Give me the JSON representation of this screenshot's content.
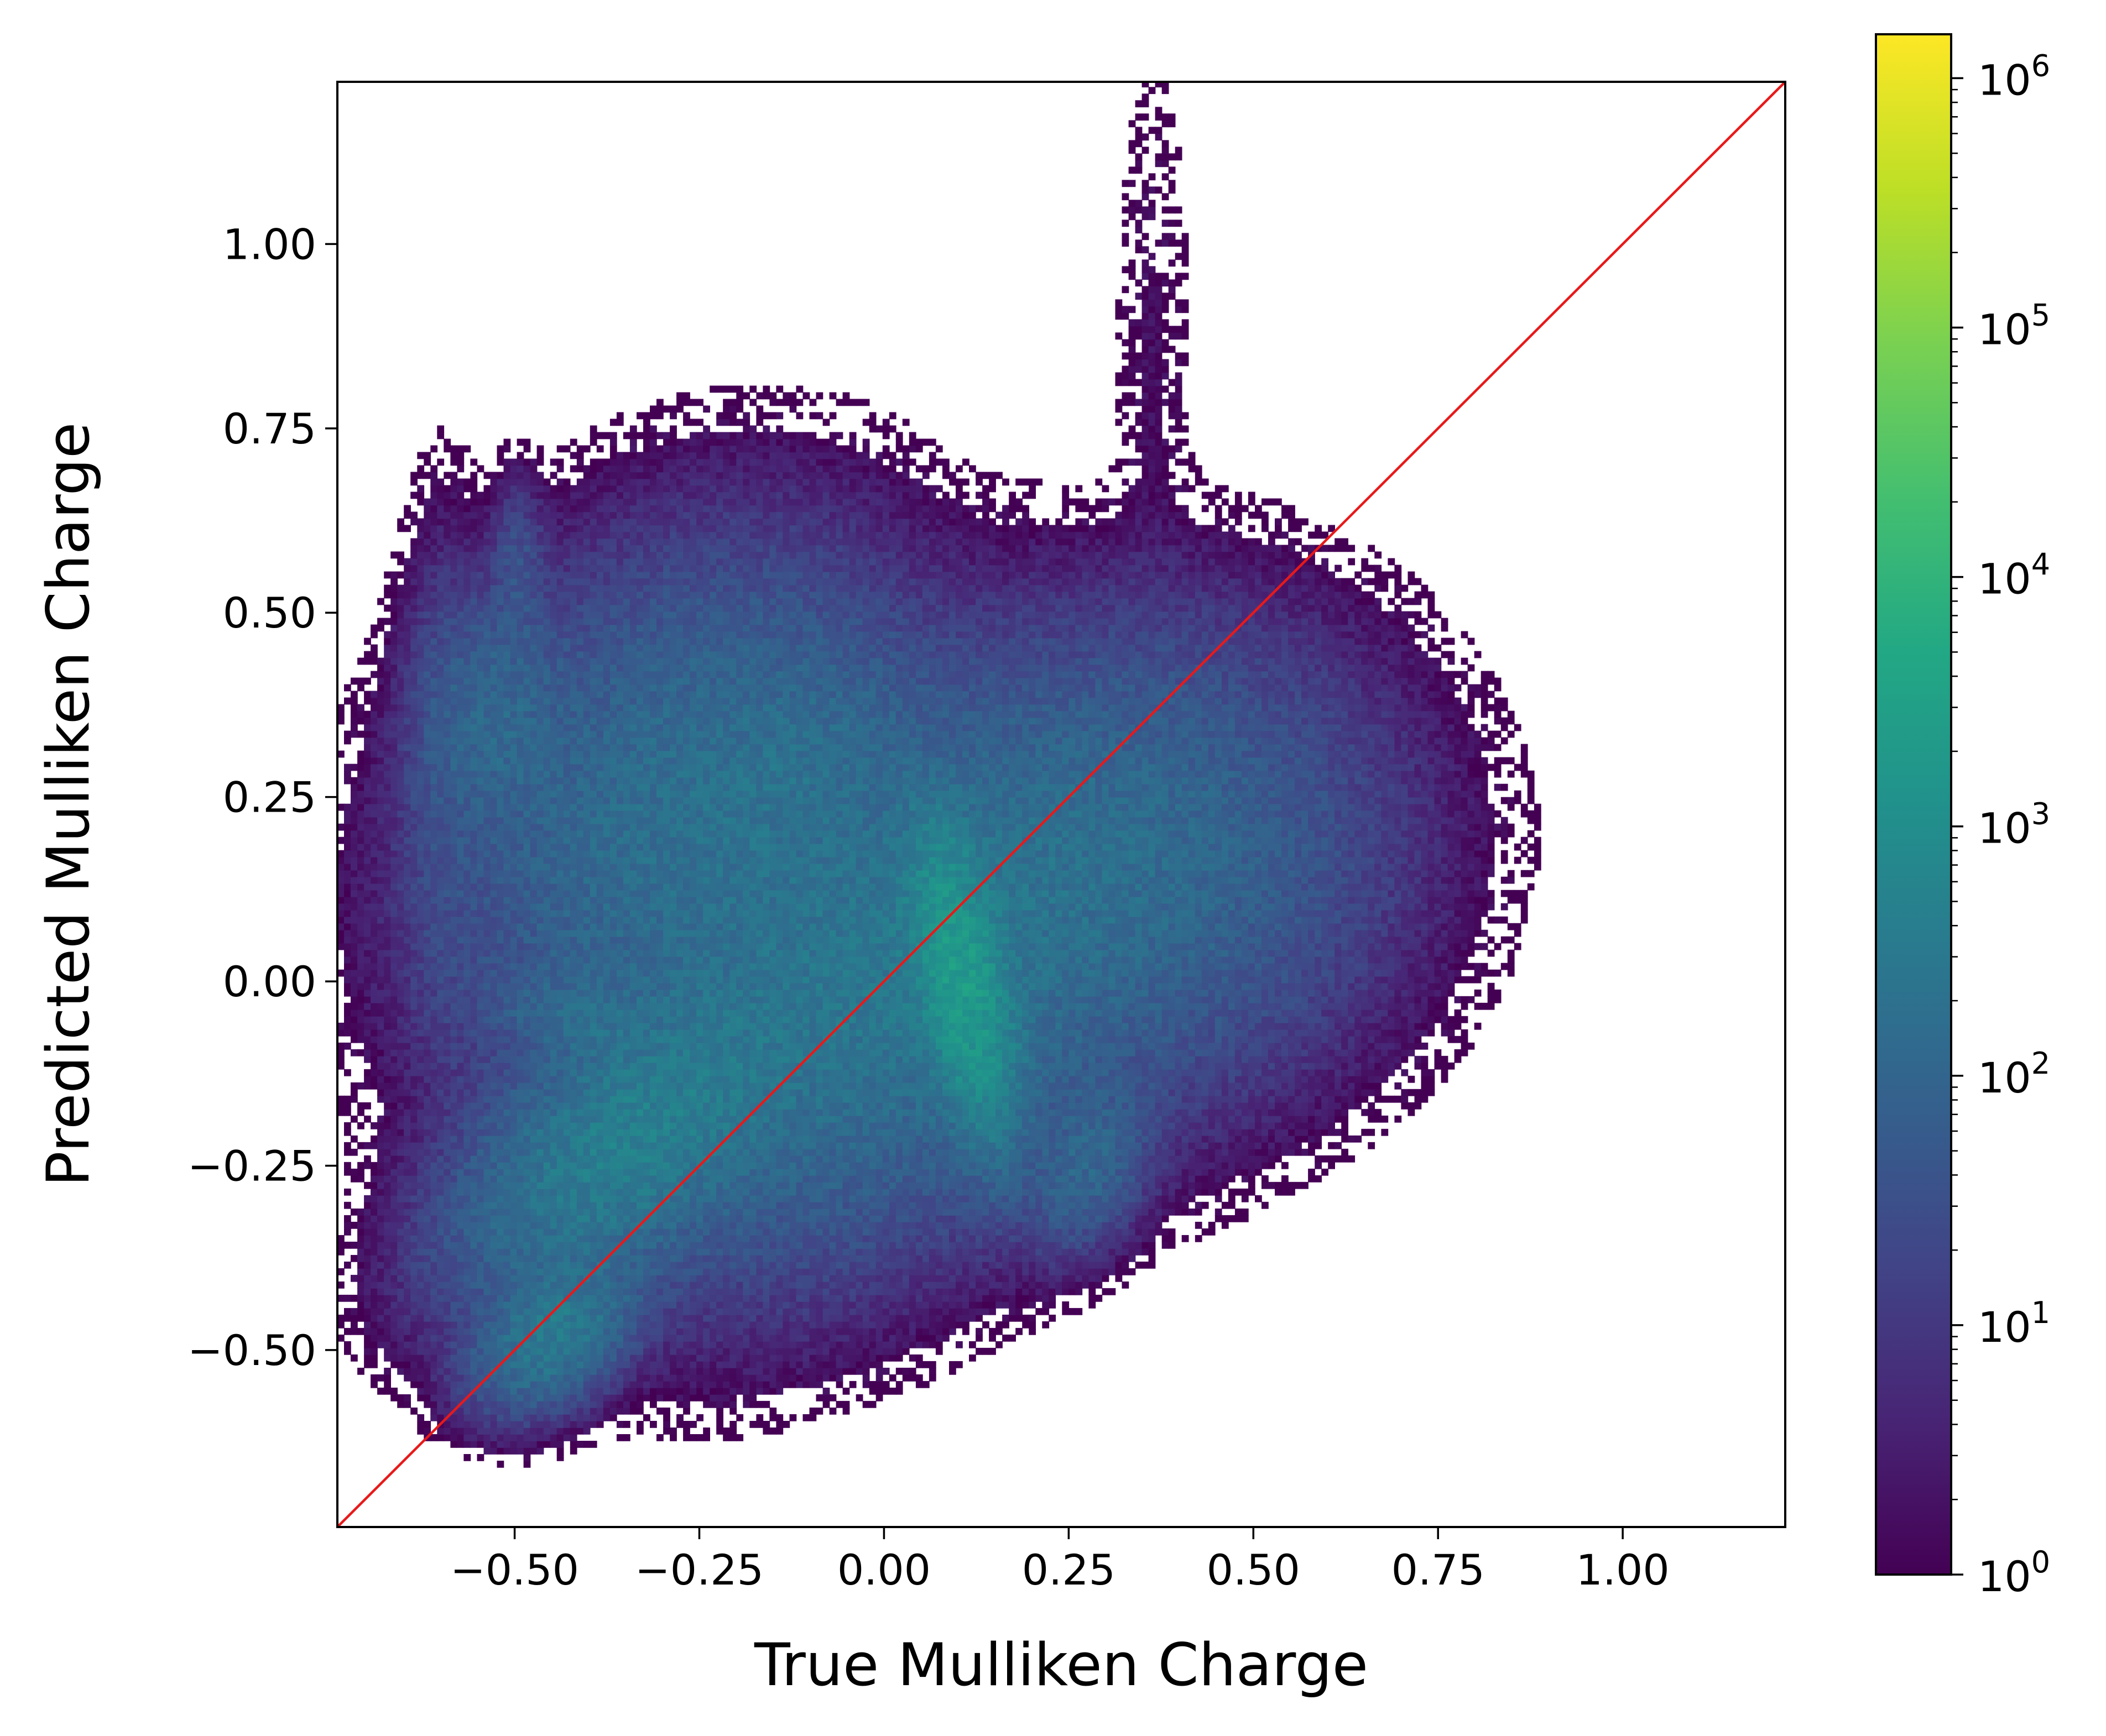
{
  "chart_data": {
    "type": "heatmap",
    "title": "",
    "xlabel": "True Mulliken Charge",
    "ylabel": "Predicted Mulliken Charge",
    "xlim": [
      -0.74,
      1.22
    ],
    "ylim": [
      -0.74,
      1.22
    ],
    "x_ticks": [
      -0.5,
      -0.25,
      0.0,
      0.25,
      0.5,
      0.75,
      1.0
    ],
    "x_tick_labels": [
      "−0.50",
      "−0.25",
      "0.00",
      "0.25",
      "0.50",
      "0.75",
      "1.00"
    ],
    "y_ticks": [
      -0.5,
      -0.25,
      0.0,
      0.25,
      0.5,
      0.75,
      1.0
    ],
    "y_tick_labels": [
      "−0.50",
      "−0.25",
      "0.00",
      "0.25",
      "0.50",
      "0.75",
      "1.00"
    ],
    "grid": false,
    "reference_line": {
      "from": [
        -0.74,
        -0.74
      ],
      "to": [
        1.22,
        1.22
      ],
      "color": "#e8191a"
    },
    "colorbar": {
      "scale": "log",
      "min": 1,
      "max": 1500000,
      "colormap": "viridis",
      "ticks": [
        {
          "value": 1,
          "base": "10",
          "exp": "0"
        },
        {
          "value": 10,
          "base": "10",
          "exp": "1"
        },
        {
          "value": 100,
          "base": "10",
          "exp": "2"
        },
        {
          "value": 1000,
          "base": "10",
          "exp": "3"
        },
        {
          "value": 10000,
          "base": "10",
          "exp": "4"
        },
        {
          "value": 100000,
          "base": "10",
          "exp": "5"
        },
        {
          "value": 1000000,
          "base": "10",
          "exp": "6"
        }
      ]
    },
    "density_regions": [
      {
        "cx": 0.0,
        "cy": 0.0,
        "sx": 0.22,
        "sy": 0.14,
        "rot": 40,
        "log10": 2.4
      },
      {
        "cx": -0.35,
        "cy": -0.22,
        "sx": 0.13,
        "sy": 0.07,
        "rot": 40,
        "log10": 2.6
      },
      {
        "cx": -0.45,
        "cy": -0.48,
        "sx": 0.06,
        "sy": 0.04,
        "rot": 40,
        "log10": 2.5
      },
      {
        "cx": 0.33,
        "cy": 0.15,
        "sx": 0.17,
        "sy": 0.15,
        "rot": 20,
        "log10": 2.0
      },
      {
        "cx": 0.1,
        "cy": 0.0,
        "sx": 0.03,
        "sy": 0.1,
        "rot": 10,
        "log10": 3.3
      },
      {
        "cx": -0.28,
        "cy": 0.22,
        "sx": 0.14,
        "sy": 0.18,
        "rot": -30,
        "log10": 2.2
      },
      {
        "cx": -0.12,
        "cy": 0.28,
        "sx": 0.07,
        "sy": 0.1,
        "rot": -40,
        "log10": 1.9
      },
      {
        "cx": -0.53,
        "cy": 0.35,
        "sx": 0.05,
        "sy": 0.08,
        "rot": 0,
        "log10": 2.0
      },
      {
        "cx": -0.6,
        "cy": 0.25,
        "sx": 0.03,
        "sy": 0.18,
        "rot": 0,
        "log10": 1.3
      },
      {
        "cx": 0.27,
        "cy": -0.25,
        "sx": 0.04,
        "sy": 0.06,
        "rot": -20,
        "log10": 2.0
      },
      {
        "cx": -0.42,
        "cy": -0.05,
        "sx": 0.06,
        "sy": 0.03,
        "rot": -10,
        "log10": 2.0
      },
      {
        "cx": 0.36,
        "cy": 0.85,
        "sx": 0.03,
        "sy": 0.25,
        "rot": 0,
        "log10": 0.2
      },
      {
        "cx": -0.5,
        "cy": 0.55,
        "sx": 0.02,
        "sy": 0.06,
        "rot": 0,
        "log10": 1.5
      },
      {
        "cx": 0.15,
        "cy": -0.15,
        "sx": 0.03,
        "sy": 0.08,
        "rot": 0,
        "log10": 1.8
      }
    ]
  }
}
